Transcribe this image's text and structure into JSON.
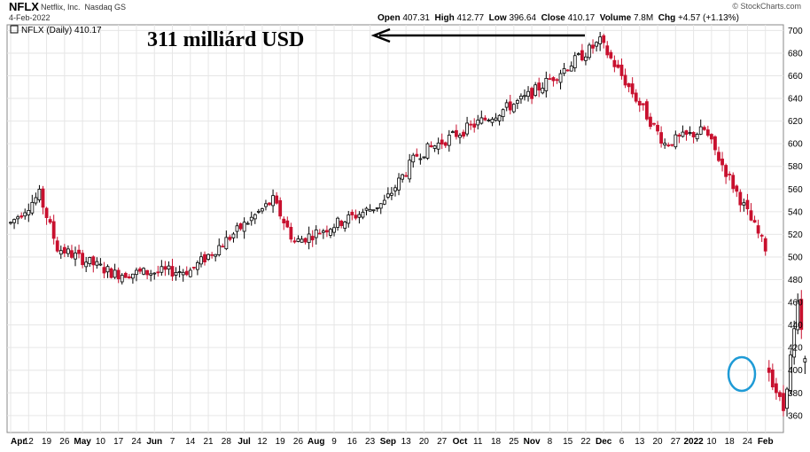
{
  "header": {
    "symbol": "NFLX",
    "name": "Netflix, Inc.",
    "exchange": "Nasdaq GS",
    "date": "4-Feb-2022",
    "credit": "© StockCharts.com",
    "legend": "NFLX (Daily) 410.17",
    "open_label": "Open",
    "open": "407.31",
    "high_label": "High",
    "high": "412.77",
    "low_label": "Low",
    "low": "396.64",
    "close_label": "Close",
    "close": "410.17",
    "volume_label": "Volume",
    "volume": "7.8M",
    "chg_label": "Chg",
    "chg": "+4.57 (+1.13%)"
  },
  "annotation": {
    "text": "311 milliárd USD"
  },
  "colors": {
    "up": "#000000",
    "down": "#c8102e",
    "grid": "#e6e6e6",
    "circle": "#1f9bd6",
    "arrow": "#000000"
  },
  "chart_data": {
    "type": "candlestick",
    "ylim": [
      345,
      705
    ],
    "yticks": [
      360,
      380,
      400,
      420,
      440,
      460,
      480,
      500,
      520,
      540,
      560,
      580,
      600,
      620,
      640,
      660,
      680,
      700
    ],
    "x_axis_labels": [
      "Apr",
      "12",
      "19",
      "26",
      "May",
      "10",
      "17",
      "24",
      "Jun",
      "7",
      "14",
      "21",
      "28",
      "Jul",
      "12",
      "19",
      "26",
      "Aug",
      "9",
      "16",
      "23",
      "Sep",
      "13",
      "20",
      "27",
      "Oct",
      "11",
      "18",
      "25",
      "Nov",
      "8",
      "15",
      "22",
      "Dec",
      "6",
      "13",
      "20",
      "27",
      "2022",
      "10",
      "18",
      "24",
      "Feb"
    ],
    "x_axis_bold": [
      0,
      4,
      8,
      13,
      17,
      21,
      25,
      29,
      33,
      38,
      42
    ],
    "x_label_offsets": [
      0,
      5,
      10,
      15,
      20,
      25,
      30,
      35,
      40,
      45,
      50,
      55,
      60,
      65,
      70,
      75,
      80,
      85,
      90,
      95,
      100,
      105,
      110,
      115,
      120,
      125,
      130,
      135,
      140,
      145,
      150,
      155,
      160,
      165,
      170,
      175,
      180,
      185,
      190,
      195,
      200,
      205,
      210
    ],
    "marks": [
      {
        "date": "2021-04-01",
        "close": 530,
        "high": 540
      },
      {
        "date": "2021-04-13",
        "close": 555,
        "high": 564
      },
      {
        "date": "2021-04-20",
        "close": 508,
        "low": 496
      },
      {
        "date": "2021-05-12",
        "close": 485,
        "low": 478
      },
      {
        "date": "2021-06-10",
        "close": 488,
        "low": 482
      },
      {
        "date": "2021-07-13",
        "close": 550,
        "high": 556
      },
      {
        "date": "2021-07-21",
        "close": 513,
        "low": 505
      },
      {
        "date": "2021-08-25",
        "close": 548,
        "high": 552
      },
      {
        "date": "2021-09-07",
        "close": 590,
        "high": 618
      },
      {
        "date": "2021-10-19",
        "close": 640,
        "high": 650
      },
      {
        "date": "2021-11-17",
        "close": 690,
        "high": 701
      },
      {
        "date": "2021-12-13",
        "close": 600,
        "low": 590
      },
      {
        "date": "2021-12-28",
        "close": 612,
        "high": 620
      },
      {
        "date": "2022-01-20",
        "close": 508,
        "low": 505
      },
      {
        "date": "2022-01-21",
        "close": 398,
        "low": 385
      },
      {
        "date": "2022-01-27",
        "close": 365,
        "low": 352
      },
      {
        "date": "2022-02-02",
        "close": 457,
        "high": 458
      },
      {
        "date": "2022-02-04",
        "open": 407.31,
        "high": 412.77,
        "low": 396.64,
        "close": 410.17
      }
    ]
  }
}
